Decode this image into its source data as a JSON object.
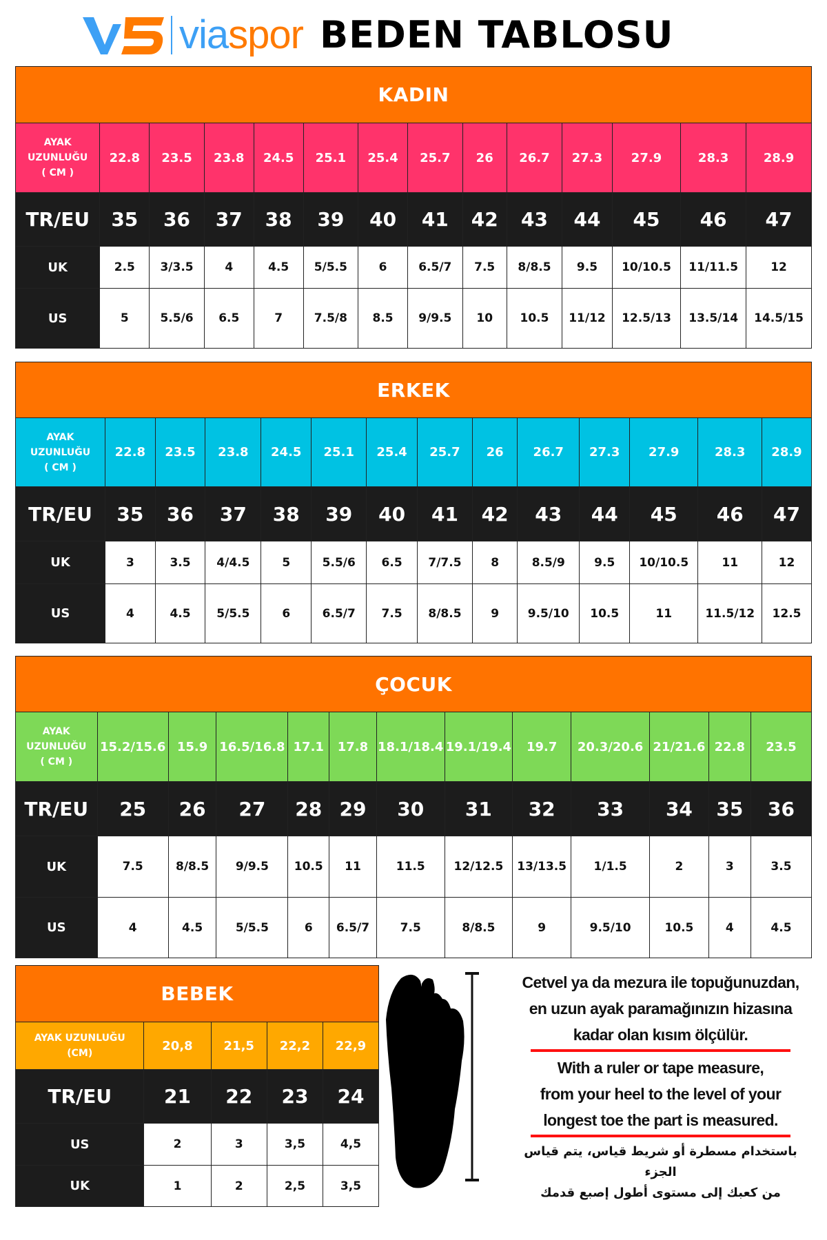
{
  "header": {
    "logo_mark": "VS",
    "brand": "viaspor",
    "title": "BEDEN TABLOSU"
  },
  "colors": {
    "section_header": "#FF7300",
    "kadin": "#FF336B",
    "erkek": "#00C2E3",
    "cocuk": "#7ED957",
    "bebek": "#FFA800",
    "dark": "#1C1C1C"
  },
  "tables": [
    {
      "title": "KADIN",
      "length_label": [
        "AYAK",
        "UZUNLUĞU",
        "( CM )"
      ],
      "length_values": [
        "22.8",
        "23.5",
        "23.8",
        "24.5",
        "25.1",
        "25.4",
        "25.7",
        "26",
        "26.7",
        "27.3",
        "27.9",
        "28.3",
        "28.9"
      ],
      "tr_label": "TR/EU",
      "tr_values": [
        "35",
        "36",
        "37",
        "38",
        "39",
        "40",
        "41",
        "42",
        "43",
        "44",
        "45",
        "46",
        "47"
      ],
      "rows": [
        {
          "label": "UK",
          "values": [
            "2.5",
            "3/3.5",
            "4",
            "4.5",
            "5/5.5",
            "6",
            "6.5/7",
            "7.5",
            "8/8.5",
            "9.5",
            "10/10.5",
            "11/11.5",
            "12"
          ]
        },
        {
          "label": "US",
          "values": [
            "5",
            "5.5/6",
            "6.5",
            "7",
            "7.5/8",
            "8.5",
            "9/9.5",
            "10",
            "10.5",
            "11/12",
            "12.5/13",
            "13.5/14",
            "14.5/15"
          ]
        }
      ]
    },
    {
      "title": "ERKEK",
      "length_label": [
        "AYAK",
        "UZUNLUĞU",
        "( CM )"
      ],
      "length_values": [
        "22.8",
        "23.5",
        "23.8",
        "24.5",
        "25.1",
        "25.4",
        "25.7",
        "26",
        "26.7",
        "27.3",
        "27.9",
        "28.3",
        "28.9"
      ],
      "tr_label": "TR/EU",
      "tr_values": [
        "35",
        "36",
        "37",
        "38",
        "39",
        "40",
        "41",
        "42",
        "43",
        "44",
        "45",
        "46",
        "47"
      ],
      "rows": [
        {
          "label": "UK",
          "values": [
            "3",
            "3.5",
            "4/4.5",
            "5",
            "5.5/6",
            "6.5",
            "7/7.5",
            "8",
            "8.5/9",
            "9.5",
            "10/10.5",
            "11",
            "12"
          ]
        },
        {
          "label": "US",
          "values": [
            "4",
            "4.5",
            "5/5.5",
            "6",
            "6.5/7",
            "7.5",
            "8/8.5",
            "9",
            "9.5/10",
            "10.5",
            "11",
            "11.5/12",
            "12.5"
          ]
        }
      ]
    },
    {
      "title": "ÇOCUK",
      "length_label": [
        "AYAK",
        "UZUNLUĞU",
        "( CM )"
      ],
      "length_values": [
        "15.2/15.6",
        "15.9",
        "16.5/16.8",
        "17.1",
        "17.8",
        "18.1/18.4",
        "19.1/19.4",
        "19.7",
        "20.3/20.6",
        "21/21.6",
        "22.8",
        "23.5"
      ],
      "tr_label": "TR/EU",
      "tr_values": [
        "25",
        "26",
        "27",
        "28",
        "29",
        "30",
        "31",
        "32",
        "33",
        "34",
        "35",
        "36"
      ],
      "rows": [
        {
          "label": "UK",
          "values": [
            "7.5",
            "8/8.5",
            "9/9.5",
            "10.5",
            "11",
            "11.5",
            "12/12.5",
            "13/13.5",
            "1/1.5",
            "2",
            "3",
            "3.5"
          ]
        },
        {
          "label": "US",
          "values": [
            "4",
            "4.5",
            "5/5.5",
            "6",
            "6.5/7",
            "7.5",
            "8/8.5",
            "9",
            "9.5/10",
            "10.5",
            "4",
            "4.5"
          ]
        }
      ]
    },
    {
      "title": "BEBEK",
      "length_label": [
        "AYAK UZUNLUĞU",
        "(CM)"
      ],
      "length_values": [
        "20,8",
        "21,5",
        "22,2",
        "22,9"
      ],
      "tr_label": "TR/EU",
      "tr_values": [
        "21",
        "22",
        "23",
        "24"
      ],
      "rows": [
        {
          "label": "US",
          "values": [
            "2",
            "3",
            "3,5",
            "4,5"
          ]
        },
        {
          "label": "UK",
          "values": [
            "1",
            "2",
            "2,5",
            "3,5"
          ]
        }
      ]
    }
  ],
  "instructions": {
    "tr": [
      "Cetvel ya da mezura ile topuğunuzdan,",
      "en uzun ayak paramağınızın hizasına",
      "kadar olan kısım ölçülür."
    ],
    "en": [
      "With a ruler or tape measure,",
      "from your heel to the level of your",
      "longest toe the part is measured."
    ],
    "ar": [
      "باستخدام مسطرة أو شريط قياس، يتم قياس الجزء",
      "من كعبك إلى مستوى أطول إصبع قدمك"
    ]
  },
  "illustration": {
    "foot_icon": "foot-silhouette-icon",
    "ruler_icon": "measure-bar-icon"
  }
}
